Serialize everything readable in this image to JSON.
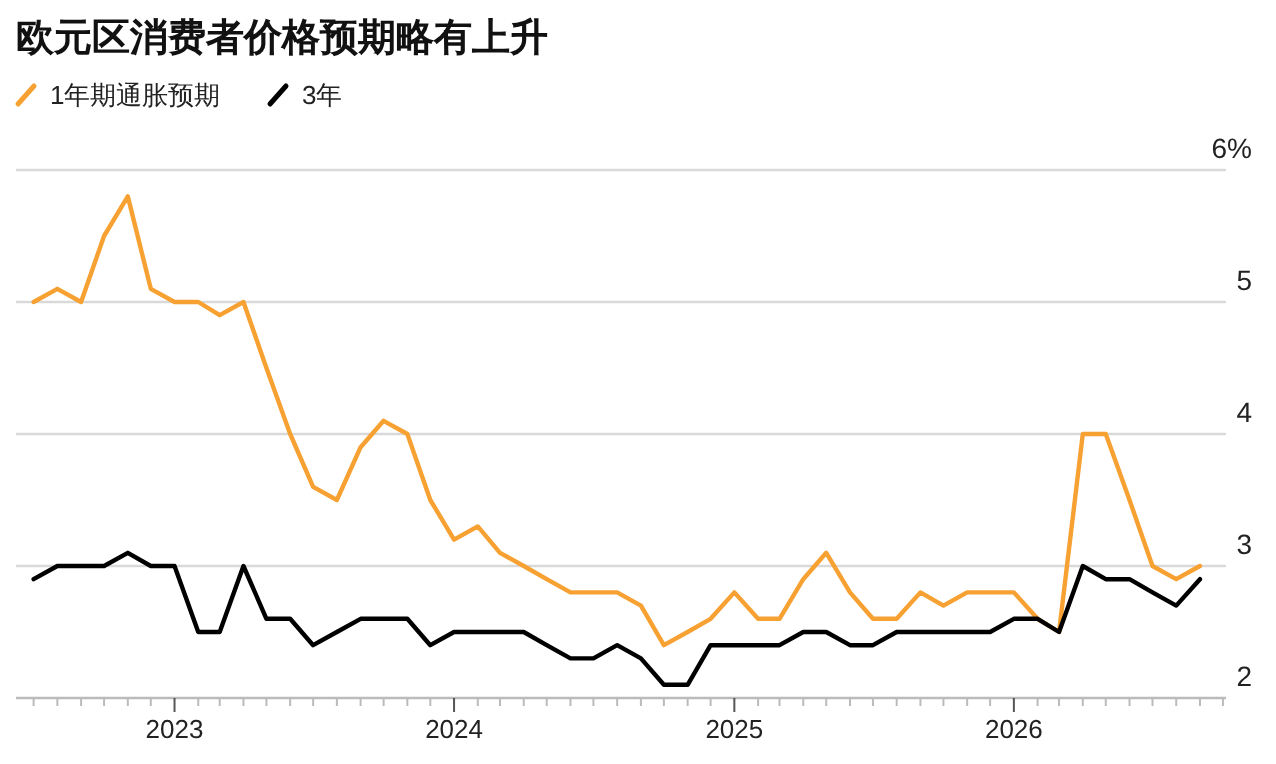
{
  "chart_data": {
    "type": "line",
    "title": "欧元区消费者价格预期略有上升",
    "x": [
      "2022-07",
      "2022-08",
      "2022-09",
      "2022-10",
      "2022-11",
      "2022-12",
      "2023-01",
      "2023-02",
      "2023-03",
      "2023-04",
      "2023-05",
      "2023-06",
      "2023-07",
      "2023-08",
      "2023-09",
      "2023-10",
      "2023-11",
      "2023-12",
      "2024-01",
      "2024-02",
      "2024-03",
      "2024-04",
      "2024-05",
      "2024-06",
      "2024-07",
      "2024-08",
      "2024-09",
      "2024-10",
      "2024-11",
      "2024-12",
      "2025-01",
      "2025-02",
      "2025-03",
      "2025-04",
      "2025-05",
      "2025-06",
      "2025-07",
      "2025-08",
      "2025-09",
      "2025-10",
      "2025-11",
      "2025-12",
      "2026-01",
      "2026-02",
      "2026-03",
      "2026-04",
      "2026-05",
      "2026-06",
      "2026-07",
      "2026-08",
      "2026-09"
    ],
    "series": [
      {
        "name": "1年期通胀预期",
        "color": "#f7a133",
        "values": [
          5.0,
          5.1,
          5.0,
          5.5,
          5.8,
          5.1,
          5.0,
          5.0,
          4.9,
          5.0,
          4.5,
          4.0,
          3.6,
          3.5,
          3.9,
          4.1,
          4.0,
          3.5,
          3.2,
          3.3,
          3.1,
          3.0,
          2.9,
          2.8,
          2.8,
          2.8,
          2.7,
          2.4,
          2.5,
          2.6,
          2.8,
          2.6,
          2.6,
          2.9,
          3.1,
          2.8,
          2.6,
          2.6,
          2.8,
          2.7,
          2.8,
          2.8,
          2.8,
          2.6,
          2.5,
          4.0,
          4.0,
          3.5,
          3.0,
          2.9,
          3.0
        ]
      },
      {
        "name": "3年",
        "color": "#000000",
        "values": [
          2.9,
          3.0,
          3.0,
          3.0,
          3.1,
          3.0,
          3.0,
          2.5,
          2.5,
          3.0,
          2.6,
          2.6,
          2.4,
          2.5,
          2.6,
          2.6,
          2.6,
          2.4,
          2.5,
          2.5,
          2.5,
          2.5,
          2.4,
          2.3,
          2.3,
          2.4,
          2.3,
          2.1,
          2.1,
          2.4,
          2.4,
          2.4,
          2.4,
          2.5,
          2.5,
          2.4,
          2.4,
          2.5,
          2.5,
          2.5,
          2.5,
          2.5,
          2.6,
          2.6,
          2.5,
          3.0,
          2.9,
          2.9,
          2.8,
          2.7,
          2.9
        ]
      }
    ],
    "xlim": [
      "2022-06-08",
      "2026-10-05"
    ],
    "xticks": [
      {
        "value": "2022-07",
        "label": null
      },
      {
        "value": "2022-08",
        "label": null
      },
      {
        "value": "2022-09",
        "label": null
      },
      {
        "value": "2022-10",
        "label": null
      },
      {
        "value": "2022-11",
        "label": null
      },
      {
        "value": "2022-12",
        "label": null
      },
      {
        "value": "2023-01",
        "label": "2023"
      },
      {
        "value": "2023-02",
        "label": null
      },
      {
        "value": "2023-03",
        "label": null
      },
      {
        "value": "2023-04",
        "label": null
      },
      {
        "value": "2023-05",
        "label": null
      },
      {
        "value": "2023-06",
        "label": null
      },
      {
        "value": "2023-07",
        "label": null
      },
      {
        "value": "2023-08",
        "label": null
      },
      {
        "value": "2023-09",
        "label": null
      },
      {
        "value": "2023-10",
        "label": null
      },
      {
        "value": "2023-11",
        "label": null
      },
      {
        "value": "2023-12",
        "label": null
      },
      {
        "value": "2024-01",
        "label": "2024"
      },
      {
        "value": "2024-02",
        "label": null
      },
      {
        "value": "2024-03",
        "label": null
      },
      {
        "value": "2024-04",
        "label": null
      },
      {
        "value": "2024-05",
        "label": null
      },
      {
        "value": "2024-06",
        "label": null
      },
      {
        "value": "2024-07",
        "label": null
      },
      {
        "value": "2024-08",
        "label": null
      },
      {
        "value": "2024-09",
        "label": null
      },
      {
        "value": "2024-10",
        "label": null
      },
      {
        "value": "2024-11",
        "label": null
      },
      {
        "value": "2024-12",
        "label": null
      },
      {
        "value": "2025-01",
        "label": "2025"
      },
      {
        "value": "2025-02",
        "label": null
      },
      {
        "value": "2025-03",
        "label": null
      },
      {
        "value": "2025-04",
        "label": null
      },
      {
        "value": "2025-05",
        "label": null
      },
      {
        "value": "2025-06",
        "label": null
      },
      {
        "value": "2025-07",
        "label": null
      },
      {
        "value": "2025-08",
        "label": null
      },
      {
        "value": "2025-09",
        "label": null
      },
      {
        "value": "2025-10",
        "label": null
      },
      {
        "value": "2025-11",
        "label": null
      },
      {
        "value": "2025-12",
        "label": null
      },
      {
        "value": "2026-01",
        "label": "2026"
      },
      {
        "value": "2026-02",
        "label": null
      },
      {
        "value": "2026-03",
        "label": null
      },
      {
        "value": "2026-04",
        "label": null
      },
      {
        "value": "2026-05",
        "label": null
      },
      {
        "value": "2026-06",
        "label": null
      },
      {
        "value": "2026-07",
        "label": null
      },
      {
        "value": "2026-08",
        "label": null
      },
      {
        "value": "2026-09",
        "label": null
      },
      {
        "value": "2026-10",
        "label": null
      }
    ],
    "ylim": [
      2,
      6
    ],
    "yticks": [
      2,
      3,
      4,
      5,
      {
        "value": 6,
        "label": "6%"
      }
    ],
    "grid": "y",
    "legend": "top left",
    "marker": "none",
    "line_style": "solid"
  }
}
